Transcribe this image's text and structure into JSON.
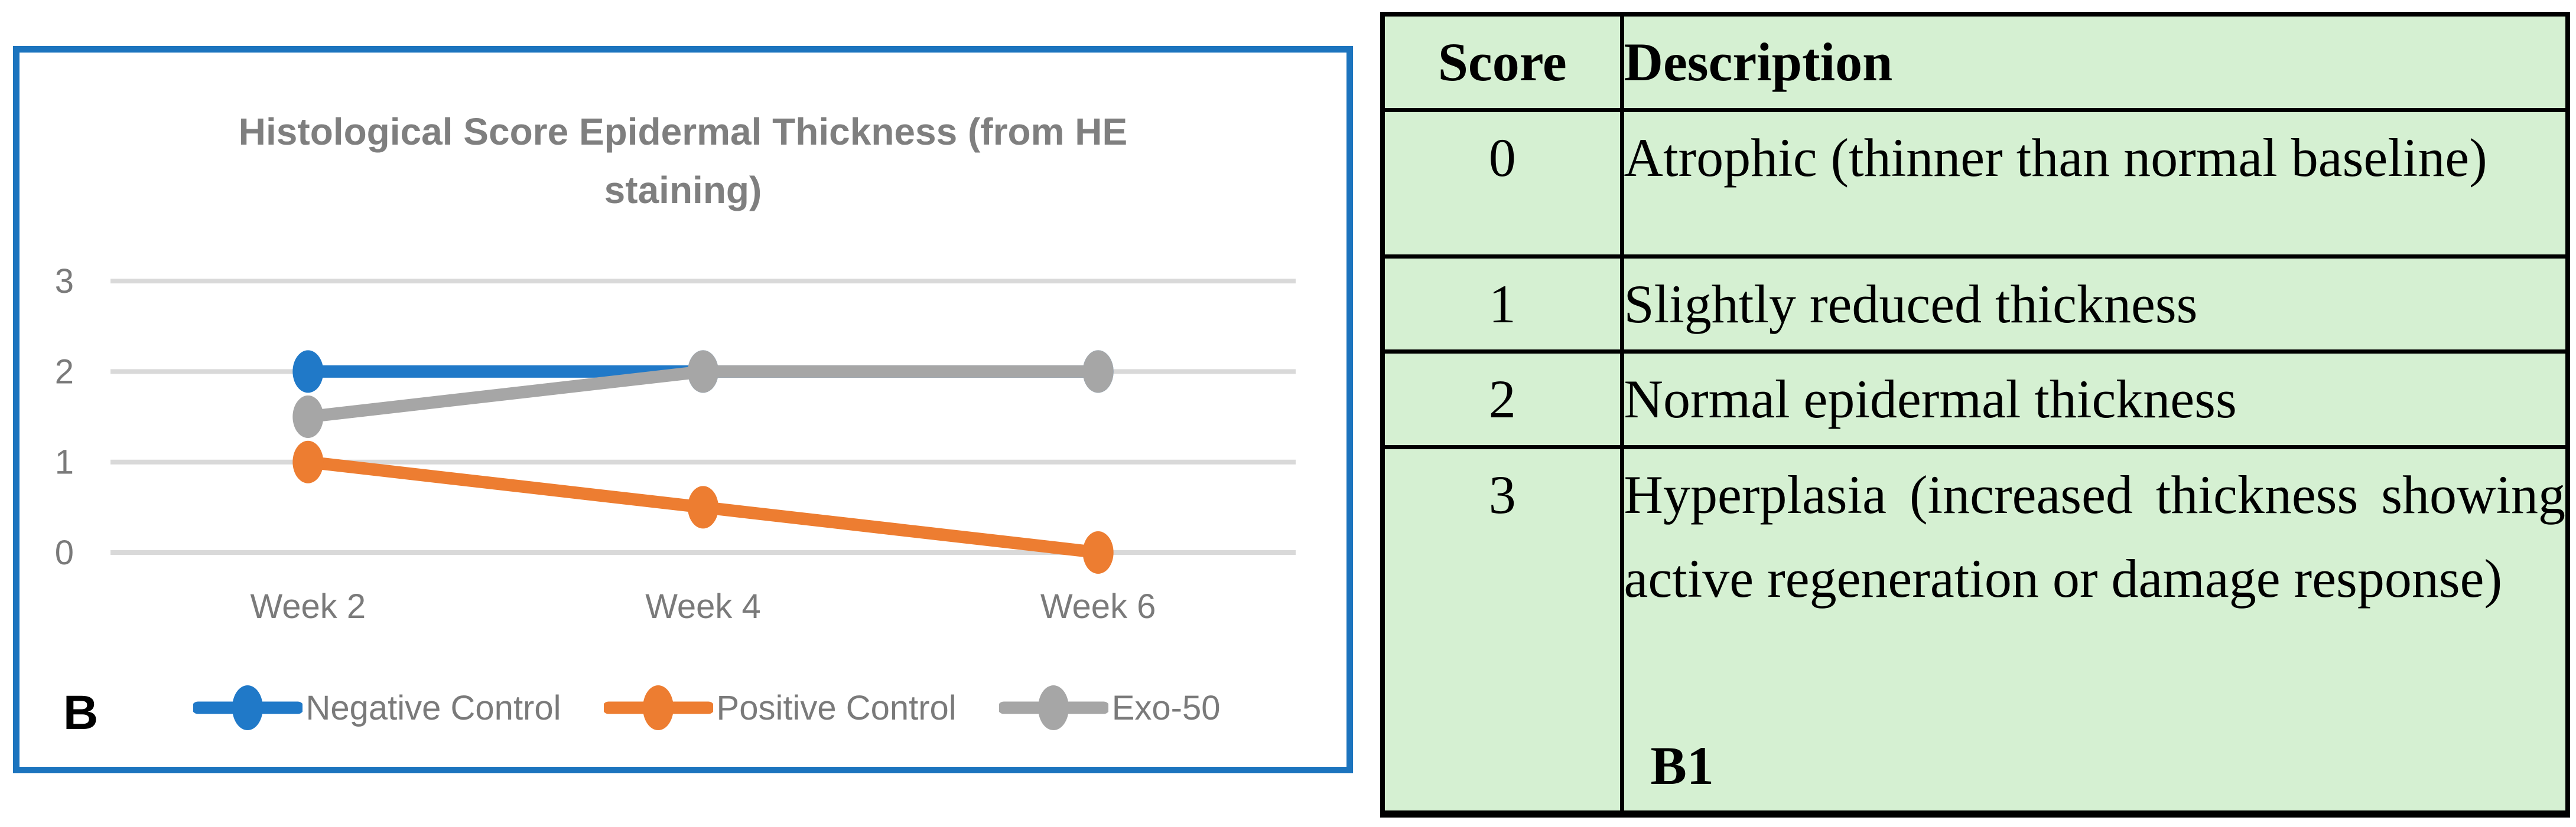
{
  "panel_labels": {
    "chart": "B",
    "table": "B1"
  },
  "colors": {
    "chart_border": "#1c74be",
    "gridline": "#d9d9d9",
    "axis_text": "#7a7a7a",
    "title_text": "#7f7f7f",
    "table_background": "#d5f0d2",
    "table_border": "#000000",
    "series_blue": "#2079c8",
    "series_orange": "#ed7d31",
    "series_gray": "#a6a6a6"
  },
  "chart_data": [
    {
      "type": "line",
      "title": "Histological Score Epidermal Thickness (from HE staining)",
      "categories": [
        "Week 2",
        "Week 4",
        "Week 6"
      ],
      "series": [
        {
          "name": "Negative Control",
          "color": "#2079c8",
          "values": [
            2,
            2,
            2
          ]
        },
        {
          "name": "Positive Control",
          "color": "#ed7d31",
          "values": [
            1,
            0.5,
            0
          ]
        },
        {
          "name": "Exo-50",
          "color": "#a6a6a6",
          "values": [
            1.5,
            2,
            2
          ]
        }
      ],
      "xlabel": "",
      "ylabel": "",
      "ylim": [
        0,
        3
      ],
      "yticks": [
        0,
        1,
        2,
        3
      ],
      "grid": true,
      "legend_position": "bottom",
      "panel_label": "B"
    },
    {
      "type": "table",
      "panel_label": "B1",
      "columns": [
        "Score",
        "Description"
      ],
      "rows": [
        [
          "0",
          "Atrophic (thinner than normal baseline)"
        ],
        [
          "1",
          "Slightly reduced thickness"
        ],
        [
          "2",
          "Normal epidermal thickness"
        ],
        [
          "3",
          "Hyperplasia (increased thickness showing active regeneration or damage response)"
        ]
      ]
    }
  ]
}
